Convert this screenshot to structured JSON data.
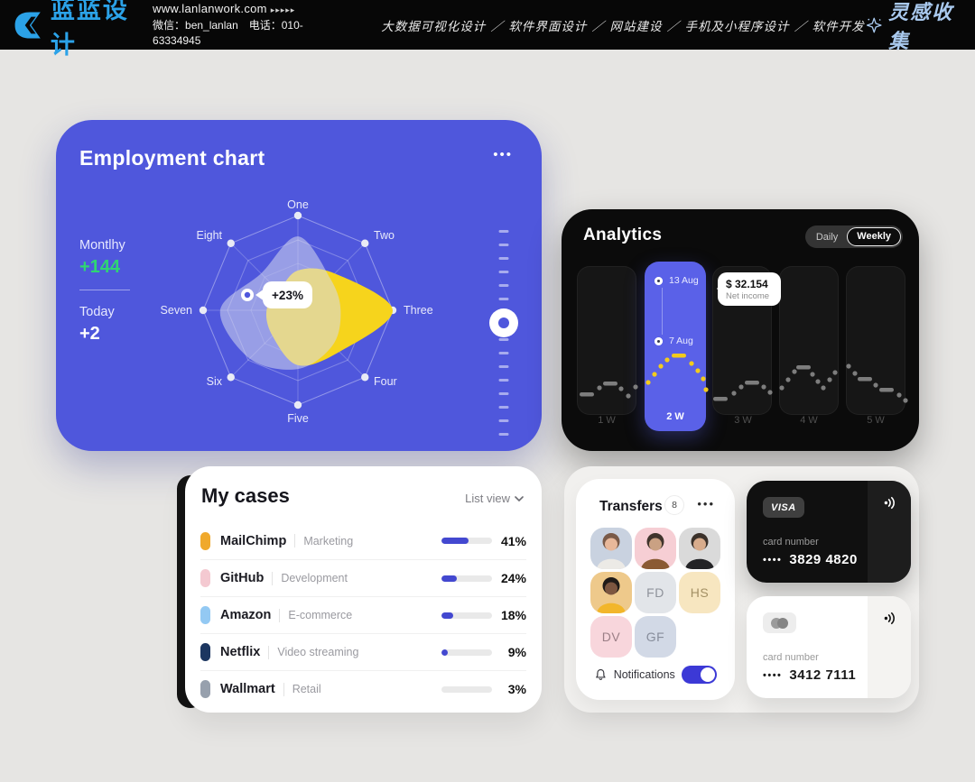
{
  "header": {
    "logo_text": "蓝蓝设计",
    "website": "www.lanlanwork.com",
    "arrows": "▸▸▸▸▸",
    "wechat_phone": "微信：ben_lanlan　电话：010-63334945",
    "services": "大数据可视化设计 ／ 软件界面设计 ／ 网站建设 ／ 手机及小程序设计 ／ 软件开发",
    "collect": "灵感收集"
  },
  "employment": {
    "title": "Employment chart",
    "menu": "•••",
    "monthly_label": "Montlhy",
    "monthly_value": "+144",
    "today_label": "Today",
    "today_value": "+2",
    "badge": "+23%",
    "axes": [
      "One",
      "Two",
      "Three",
      "Four",
      "Five",
      "Six",
      "Seven",
      "Eight"
    ]
  },
  "analytics": {
    "title": "Analytics",
    "toggle": {
      "daily": "Daily",
      "weekly": "Weekly",
      "active": "Weekly"
    },
    "weeks": [
      "1 W",
      "2 W",
      "3 W",
      "4 W",
      "5 W"
    ],
    "selected_week": "2 W",
    "date_top": "13 Aug",
    "date_bottom": "7 Aug",
    "tooltip_value": "$ 32.154",
    "tooltip_label": "Net income"
  },
  "my_cases": {
    "title": "My cases",
    "view_label": "List view",
    "rows": [
      {
        "name": "MailChimp",
        "category": "Marketing",
        "percent": 41,
        "percent_label": "41%",
        "color": "#f0a92c"
      },
      {
        "name": "GitHub",
        "category": "Development",
        "percent": 24,
        "percent_label": "24%",
        "color": "#f4c9d1"
      },
      {
        "name": "Amazon",
        "category": "E-commerce",
        "percent": 18,
        "percent_label": "18%",
        "color": "#93c9f3"
      },
      {
        "name": "Netflix",
        "category": "Video streaming",
        "percent": 9,
        "percent_label": "9%",
        "color": "#1c3660"
      },
      {
        "name": "Wallmart",
        "category": "Retail",
        "percent": 3,
        "percent_label": "3%",
        "color": "#97a0ad"
      }
    ],
    "accent": "#4348d0"
  },
  "transfers": {
    "title": "Transfers",
    "badge": "8",
    "menu": "•••",
    "avatars": [
      {
        "type": "photo",
        "name": "avatar-1",
        "bg": "#c9d2e0",
        "hair": "#7a5a48",
        "skin": "#e8b89a",
        "shirt": "#eceae6"
      },
      {
        "type": "photo",
        "name": "avatar-2",
        "bg": "#f6ced4",
        "hair": "#40342c",
        "skin": "#caa183",
        "shirt": "#8a5a33"
      },
      {
        "type": "photo",
        "name": "avatar-3",
        "bg": "#dadada",
        "hair": "#3c322b",
        "skin": "#d8ac8c",
        "shirt": "#232326"
      },
      {
        "type": "photo",
        "name": "avatar-4",
        "bg": "#eec98b",
        "hair": "#201b18",
        "skin": "#7c5640",
        "shirt": "#f2b62b"
      },
      {
        "type": "initials",
        "label": "FD",
        "bg": "#e2e5e9",
        "fg": "#8f939b"
      },
      {
        "type": "initials",
        "label": "HS",
        "bg": "#f7e6c0",
        "fg": "#a39064"
      },
      {
        "type": "initials",
        "label": "DV",
        "bg": "#f8d6dc",
        "fg": "#9b7f86"
      },
      {
        "type": "initials",
        "label": "GF",
        "bg": "#d2d9e6",
        "fg": "#878d9b"
      }
    ],
    "notifications_label": "Notifications",
    "toggle_on": true
  },
  "bank_cards": [
    {
      "brand": "VISA",
      "label": "card number",
      "dots": "••••",
      "number": "3829 4820",
      "theme": "dark"
    },
    {
      "brand": "mastercard",
      "label": "card number",
      "dots": "••••",
      "number": "3412 7111",
      "theme": "light"
    }
  ],
  "chart_data": {
    "radar": {
      "type": "radar",
      "axes": [
        "One",
        "Two",
        "Three",
        "Four",
        "Five",
        "Six",
        "Seven",
        "Eight"
      ],
      "max": 1,
      "series": [
        {
          "name": "current",
          "color": "#f6d41c",
          "values": [
            0.42,
            0.55,
            1.0,
            0.62,
            0.58,
            0.38,
            0.33,
            0.28
          ]
        },
        {
          "name": "previous",
          "color": "rgba(213,216,238,0.55)",
          "values": [
            0.78,
            0.48,
            0.45,
            0.52,
            0.62,
            0.72,
            0.82,
            0.55
          ]
        }
      ],
      "annotation": "+23%"
    },
    "analytics_sparkline": {
      "type": "line",
      "x_categories": [
        "1 W",
        "2 W",
        "3 W",
        "4 W",
        "5 W"
      ],
      "highlight": "2 W",
      "highlight_x": [
        92,
        162
      ],
      "tooltip": {
        "value": "$ 32.154",
        "label": "Net income"
      },
      "points": [
        {
          "t": "dash",
          "x": 28,
          "y": 205
        },
        {
          "t": "dot",
          "x": 42,
          "y": 198
        },
        {
          "t": "dash",
          "x": 54,
          "y": 193
        },
        {
          "t": "dot",
          "x": 66,
          "y": 199
        },
        {
          "t": "dot",
          "x": 74,
          "y": 207
        },
        {
          "t": "dot",
          "x": 82,
          "y": 197
        },
        {
          "t": "dot",
          "x": 96,
          "y": 192
        },
        {
          "t": "dot",
          "x": 103,
          "y": 183
        },
        {
          "t": "dot",
          "x": 110,
          "y": 174
        },
        {
          "t": "dot",
          "x": 117,
          "y": 167
        },
        {
          "t": "dash",
          "x": 130,
          "y": 162
        },
        {
          "t": "dot",
          "x": 144,
          "y": 171
        },
        {
          "t": "dot",
          "x": 151,
          "y": 179
        },
        {
          "t": "dot",
          "x": 157,
          "y": 188
        },
        {
          "t": "dot",
          "x": 160,
          "y": 200
        },
        {
          "t": "dash",
          "x": 176,
          "y": 210
        },
        {
          "t": "dot",
          "x": 191,
          "y": 204
        },
        {
          "t": "dot",
          "x": 199,
          "y": 197
        },
        {
          "t": "dash",
          "x": 211,
          "y": 192
        },
        {
          "t": "dot",
          "x": 224,
          "y": 197
        },
        {
          "t": "dot",
          "x": 231,
          "y": 203
        },
        {
          "t": "dot",
          "x": 244,
          "y": 198
        },
        {
          "t": "dot",
          "x": 251,
          "y": 189
        },
        {
          "t": "dot",
          "x": 258,
          "y": 180
        },
        {
          "t": "dash",
          "x": 268,
          "y": 175
        },
        {
          "t": "dot",
          "x": 278,
          "y": 183
        },
        {
          "t": "dot",
          "x": 284,
          "y": 191
        },
        {
          "t": "dot",
          "x": 290,
          "y": 198
        },
        {
          "t": "dot",
          "x": 297,
          "y": 189
        },
        {
          "t": "dot",
          "x": 303,
          "y": 181
        },
        {
          "t": "dot",
          "x": 318,
          "y": 174
        },
        {
          "t": "dot",
          "x": 325,
          "y": 182
        },
        {
          "t": "dash",
          "x": 336,
          "y": 188
        },
        {
          "t": "dot",
          "x": 348,
          "y": 195
        },
        {
          "t": "dash",
          "x": 360,
          "y": 200
        },
        {
          "t": "dot",
          "x": 374,
          "y": 206
        },
        {
          "t": "dot",
          "x": 381,
          "y": 212
        }
      ]
    },
    "cases_progress": {
      "type": "bar",
      "categories": [
        "MailChimp",
        "GitHub",
        "Amazon",
        "Netflix",
        "Wallmart"
      ],
      "values": [
        41,
        24,
        18,
        9,
        3
      ],
      "unit": "%"
    }
  }
}
